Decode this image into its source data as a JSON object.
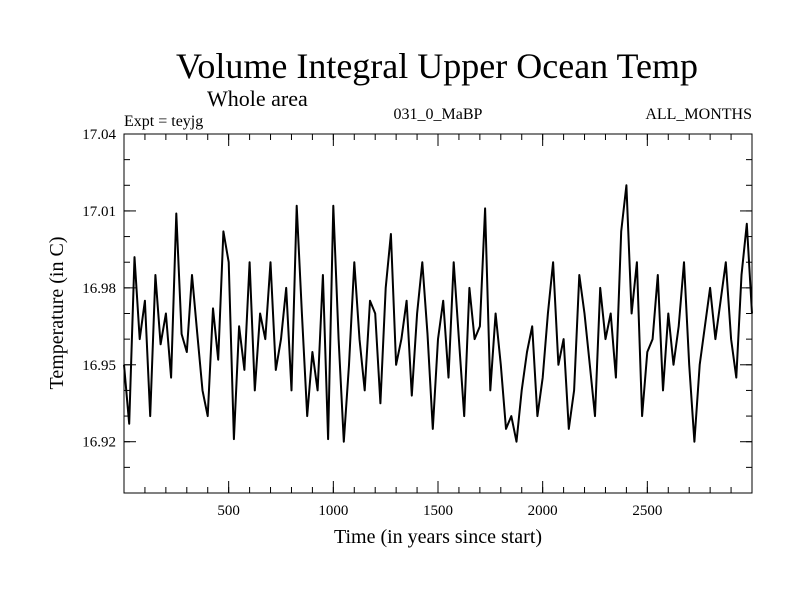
{
  "chart_data": {
    "type": "line",
    "title": "Volume Integral Upper Ocean Temp",
    "subtitle": "Whole area",
    "experiment_label": "Expt = teyjg",
    "period_label": "031_0_MaBP",
    "months_label": "ALL_MONTHS",
    "xlabel": "Time (in years since start)",
    "ylabel": "Temperature (in C)",
    "xlim": [
      0,
      3000
    ],
    "ylim": [
      16.9,
      17.04
    ],
    "x_ticks": [
      500,
      1000,
      1500,
      2000,
      2500
    ],
    "x_tick_labels": [
      "500",
      "1000",
      "1500",
      "2000",
      "2500"
    ],
    "y_ticks": [
      16.92,
      16.95,
      16.98,
      17.01,
      17.04
    ],
    "y_tick_labels": [
      "16.92",
      "16.95",
      "16.98",
      "17.01",
      "17.04"
    ],
    "grid": false,
    "series": [
      {
        "name": "Volume integral upper ocean temperature",
        "color": "#000000",
        "x": [
          0,
          25,
          50,
          75,
          100,
          125,
          150,
          175,
          200,
          225,
          250,
          275,
          300,
          325,
          350,
          375,
          400,
          425,
          450,
          475,
          500,
          525,
          550,
          575,
          600,
          625,
          650,
          675,
          700,
          725,
          750,
          775,
          800,
          825,
          850,
          875,
          900,
          925,
          950,
          975,
          1000,
          1025,
          1050,
          1075,
          1100,
          1125,
          1150,
          1175,
          1200,
          1225,
          1250,
          1275,
          1300,
          1325,
          1350,
          1375,
          1400,
          1425,
          1450,
          1475,
          1500,
          1525,
          1550,
          1575,
          1600,
          1625,
          1650,
          1675,
          1700,
          1725,
          1750,
          1775,
          1800,
          1825,
          1850,
          1875,
          1900,
          1925,
          1950,
          1975,
          2000,
          2025,
          2050,
          2075,
          2100,
          2125,
          2150,
          2175,
          2200,
          2225,
          2250,
          2275,
          2300,
          2325,
          2350,
          2375,
          2400,
          2425,
          2450,
          2475,
          2500,
          2525,
          2550,
          2575,
          2600,
          2625,
          2650,
          2675,
          2700,
          2725,
          2750,
          2775,
          2800,
          2825,
          2850,
          2875,
          2900,
          2925,
          2950,
          2975,
          3000
        ],
        "values": [
          16.95,
          16.927,
          16.992,
          16.96,
          16.975,
          16.93,
          16.985,
          16.958,
          16.97,
          16.945,
          17.009,
          16.962,
          16.955,
          16.985,
          16.962,
          16.94,
          16.93,
          16.972,
          16.952,
          17.002,
          16.99,
          16.921,
          16.965,
          16.948,
          16.99,
          16.94,
          16.97,
          16.96,
          16.99,
          16.948,
          16.96,
          16.98,
          16.94,
          17.012,
          16.97,
          16.93,
          16.955,
          16.94,
          16.985,
          16.921,
          17.012,
          16.96,
          16.92,
          16.95,
          16.99,
          16.96,
          16.94,
          16.975,
          16.97,
          16.935,
          16.98,
          17.001,
          16.95,
          16.96,
          16.975,
          16.938,
          16.97,
          16.99,
          16.962,
          16.925,
          16.96,
          16.975,
          16.945,
          16.99,
          16.96,
          16.93,
          16.98,
          16.96,
          16.965,
          17.011,
          16.94,
          16.97,
          16.95,
          16.925,
          16.93,
          16.92,
          16.94,
          16.955,
          16.965,
          16.93,
          16.945,
          16.97,
          16.99,
          16.95,
          16.96,
          16.925,
          16.94,
          16.985,
          16.97,
          16.95,
          16.93,
          16.98,
          16.96,
          16.97,
          16.945,
          17.002,
          17.02,
          16.97,
          16.99,
          16.93,
          16.955,
          16.96,
          16.985,
          16.94,
          16.97,
          16.95,
          16.965,
          16.99,
          16.95,
          16.92,
          16.95,
          16.965,
          16.98,
          16.96,
          16.975,
          16.99,
          16.96,
          16.945,
          16.985,
          17.005,
          16.97
        ]
      }
    ]
  }
}
